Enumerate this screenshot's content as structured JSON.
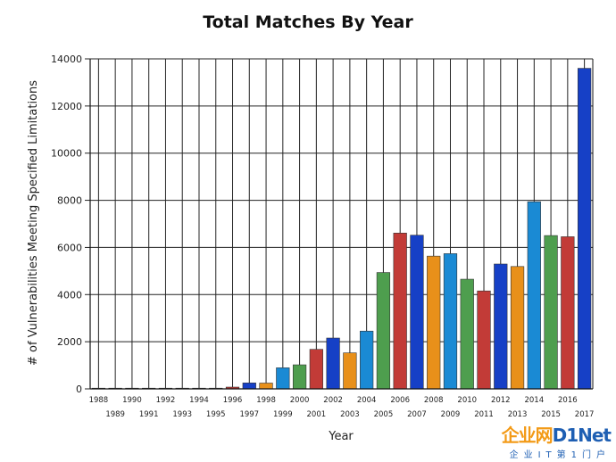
{
  "chart_data": {
    "type": "bar",
    "title": "Total Matches By Year",
    "xlabel": "Year",
    "ylabel": "# of Vulnerabilities Meeting Specified Limitations",
    "ylim": [
      0,
      14000
    ],
    "yticks": [
      0,
      2000,
      4000,
      6000,
      8000,
      10000,
      12000,
      14000
    ],
    "grid": true,
    "categories": [
      "1988",
      "1989",
      "1990",
      "1991",
      "1992",
      "1993",
      "1994",
      "1995",
      "1996",
      "1997",
      "1998",
      "1999",
      "2000",
      "2001",
      "2002",
      "2003",
      "2004",
      "2005",
      "2006",
      "2007",
      "2008",
      "2009",
      "2010",
      "2011",
      "2012",
      "2013",
      "2014",
      "2015",
      "2016",
      "2017"
    ],
    "values": [
      2,
      3,
      11,
      15,
      13,
      13,
      25,
      25,
      75,
      252,
      246,
      894,
      1020,
      1677,
      2156,
      1527,
      2451,
      4935,
      6610,
      6520,
      5632,
      5736,
      4652,
      4155,
      5297,
      5191,
      7939,
      6504,
      6454,
      13600
    ],
    "colors": [
      "#e8901a",
      "#1a8ad4",
      "#4e9e4e",
      "#c23b37",
      "#1640c6"
    ]
  },
  "watermark": {
    "brand": "企业网",
    "brand_net": "D1Net",
    "sub": "企业IT第1门户"
  }
}
